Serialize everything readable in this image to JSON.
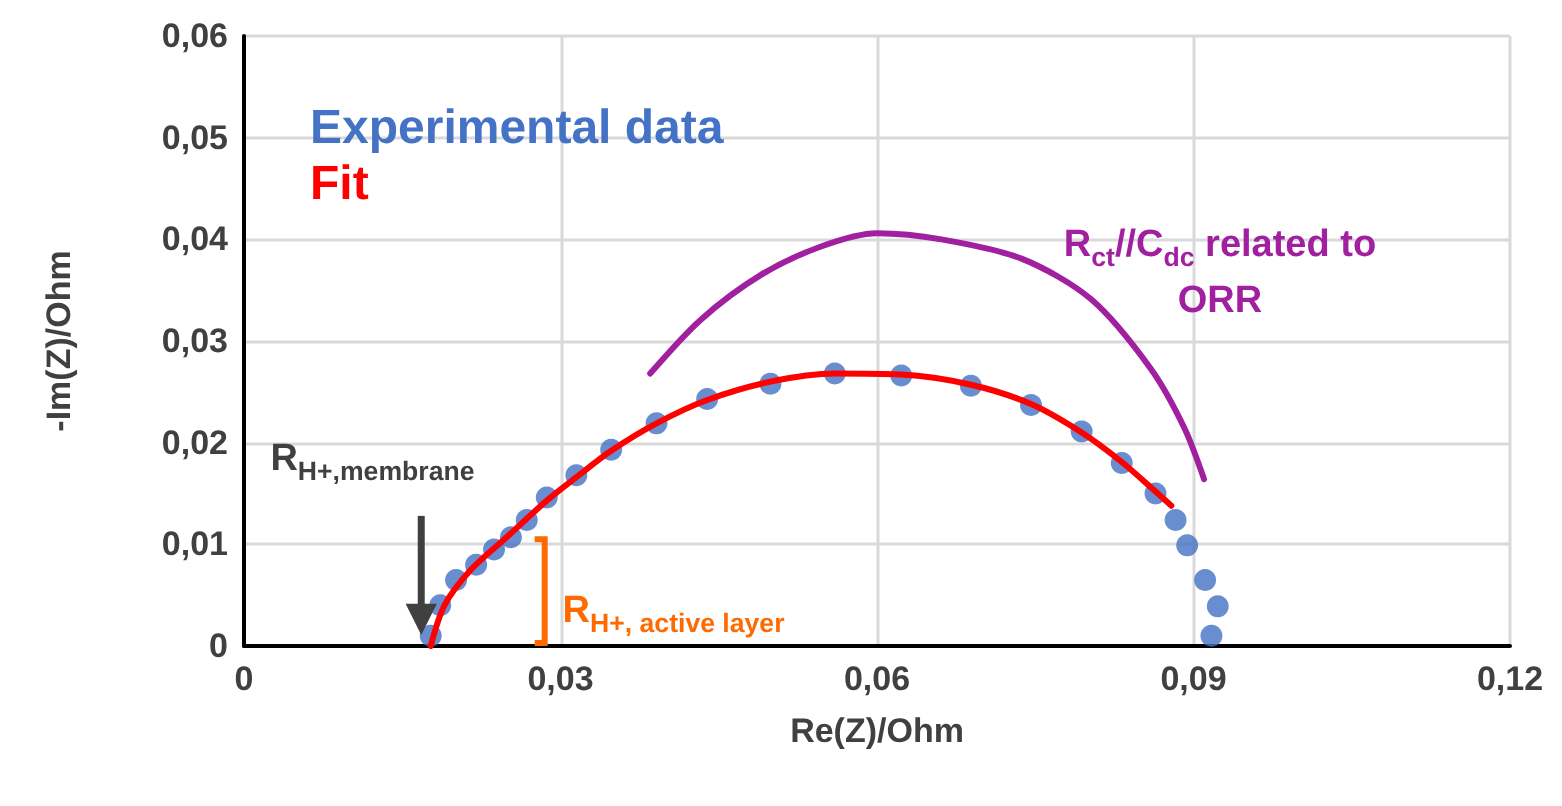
{
  "chart_data": {
    "type": "scatter",
    "xlabel": "Re(Z)/Ohm",
    "ylabel": "-Im(Z)/Ohm",
    "xlim": [
      0,
      0.12
    ],
    "xticks": [
      {
        "value": 0,
        "label": "0"
      },
      {
        "value": 0.03,
        "label": "0,03"
      },
      {
        "value": 0.06,
        "label": "0,06"
      },
      {
        "value": 0.09,
        "label": "0,09"
      },
      {
        "value": 0.12,
        "label": "0,12"
      }
    ],
    "ylim": [
      0,
      0.06
    ],
    "yticks": [
      {
        "value": 0,
        "label": "0"
      },
      {
        "value": 0.01,
        "label": "0,01"
      },
      {
        "value": 0.02,
        "label": "0,02"
      },
      {
        "value": 0.03,
        "label": "0,03"
      },
      {
        "value": 0.04,
        "label": "0,04"
      },
      {
        "value": 0.05,
        "label": "0,05"
      },
      {
        "value": 0.06,
        "label": "0,06"
      }
    ],
    "grid": true,
    "legend": "top left",
    "series": [
      {
        "name": "Experimental data",
        "type": "scatter",
        "color": "#4472c4",
        "marker": "circle",
        "x": [
          0.0177,
          0.0186,
          0.0201,
          0.022,
          0.0237,
          0.0253,
          0.0268,
          0.0287,
          0.0315,
          0.0348,
          0.0391,
          0.0439,
          0.0499,
          0.056,
          0.0623,
          0.0689,
          0.0746,
          0.0794,
          0.0832,
          0.0864,
          0.0883,
          0.0894,
          0.0911,
          0.0923,
          0.0917
        ],
        "values": [
          0.001,
          0.004,
          0.0065,
          0.008,
          0.0095,
          0.0107,
          0.0124,
          0.0146,
          0.0168,
          0.0193,
          0.0219,
          0.0243,
          0.0258,
          0.0268,
          0.0266,
          0.0256,
          0.0237,
          0.0211,
          0.018,
          0.015,
          0.0124,
          0.0099,
          0.0065,
          0.0039,
          0.001
        ]
      },
      {
        "type": "line",
        "color": "#a020a0",
        "marker": "none",
        "line_style": "solid",
        "x": [
          0.0385,
          0.0433,
          0.049,
          0.0547,
          0.06,
          0.0661,
          0.0737,
          0.0803,
          0.086,
          0.0892,
          0.091
        ],
        "values": [
          0.0268,
          0.0321,
          0.0365,
          0.0393,
          0.0406,
          0.04,
          0.0381,
          0.0341,
          0.0272,
          0.0213,
          0.0164
        ]
      },
      {
        "name": "Fit",
        "type": "line",
        "color": "#ff0000",
        "marker": "none",
        "line_style": "solid",
        "x": [
          0.0177,
          0.019,
          0.0215,
          0.025,
          0.0287,
          0.0315,
          0.0348,
          0.0391,
          0.0439,
          0.0499,
          0.056,
          0.0623,
          0.0689,
          0.0746,
          0.0794,
          0.0832,
          0.0864,
          0.0879
        ],
        "values": [
          0,
          0.004,
          0.0075,
          0.0108,
          0.0143,
          0.0166,
          0.0192,
          0.0219,
          0.0242,
          0.026,
          0.0268,
          0.0267,
          0.0257,
          0.0238,
          0.021,
          0.0181,
          0.0152,
          0.0138
        ]
      }
    ],
    "annotations": [
      "R$_{H+,membrane}$",
      "R$_{H+, active layer}$",
      "R$_{ct}$//C$_{dc}$ related to ORR"
    ]
  }
}
